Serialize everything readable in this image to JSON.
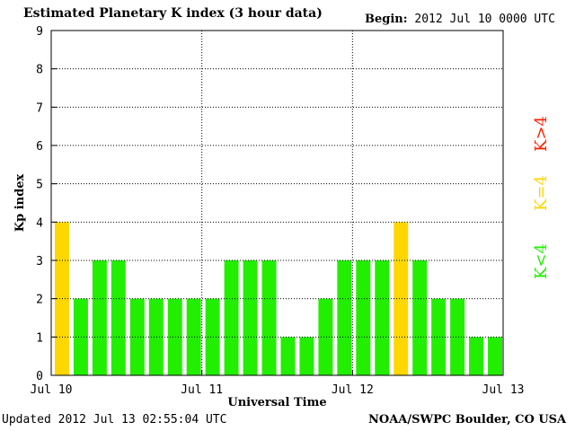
{
  "header": {
    "title": "Estimated Planetary K index (3 hour data)",
    "begin_label": "Begin:",
    "begin_value": "2012 Jul 10 0000 UTC"
  },
  "footer": {
    "updated": "Updated 2012 Jul 13 02:55:04 UTC",
    "source": "NOAA/SWPC Boulder, CO USA"
  },
  "legend": [
    {
      "label": "K>4",
      "color": "#ff2200"
    },
    {
      "label": "K=4",
      "color": "#ffd700"
    },
    {
      "label": "K<4",
      "color": "#22ee00"
    }
  ],
  "colors": {
    "below4": "#22ee00",
    "equal4": "#ffd700",
    "above4": "#ff2200"
  },
  "chart_data": {
    "type": "bar",
    "title": "Estimated Planetary K index (3 hour data)",
    "xlabel": "Universal Time",
    "ylabel": "Kp index",
    "ylim": [
      0,
      9
    ],
    "yticks": [
      "0",
      "1",
      "2",
      "3",
      "4",
      "5",
      "6",
      "7",
      "8",
      "9"
    ],
    "xticks": [
      "Jul 10",
      "Jul 11",
      "Jul 12",
      "Jul 13"
    ],
    "grid": true,
    "legend_position": "right",
    "values": [
      4,
      2,
      3,
      3,
      2,
      2,
      2,
      2,
      2,
      3,
      3,
      3,
      1,
      1,
      2,
      3,
      3,
      3,
      4,
      3,
      2,
      2,
      1,
      1
    ]
  }
}
